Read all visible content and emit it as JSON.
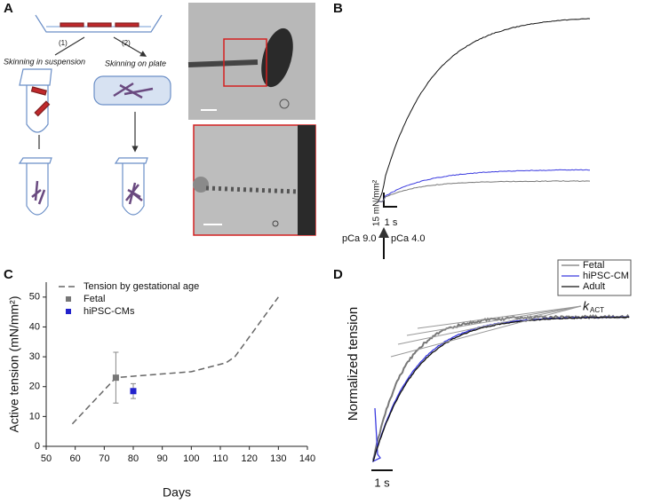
{
  "panels": {
    "A": {
      "label": "A",
      "step1": "(1)",
      "step2": "(2)",
      "left_caption": "Skinning in suspension",
      "right_caption": "Skinning on plate"
    },
    "B": {
      "label": "B",
      "scale_y": "15 mN/mm²",
      "scale_x": "1 s",
      "left_pca": "pCa 9.0",
      "right_pca": "pCa 4.0"
    },
    "C": {
      "label": "C"
    },
    "D": {
      "label": "D",
      "ylabel": "Normalized tension",
      "rate_symbol": "k",
      "rate_subscript": "ACT",
      "scale_x": "1 s",
      "legend": [
        {
          "name": "Fetal",
          "color": "#777777"
        },
        {
          "name": "hiPSC-CM",
          "color": "#3a3adf"
        },
        {
          "name": "Adult",
          "color": "#111111"
        }
      ]
    }
  },
  "chart_data": {
    "type": "line",
    "xlabel": "Days",
    "ylabel": "Active tension (mN/mm²)",
    "xlim": [
      50,
      140
    ],
    "xticks": [
      50,
      60,
      70,
      80,
      90,
      100,
      110,
      120,
      130,
      140
    ],
    "ylim": [
      0,
      55
    ],
    "yticks": [
      0,
      10,
      20,
      30,
      40,
      50
    ],
    "series": [
      {
        "name": "Tension by gestational age",
        "color": "#666666",
        "dashed": true,
        "x": [
          59,
          74,
          80,
          100,
          112,
          115,
          130
        ],
        "values": [
          7.5,
          23,
          23.5,
          25,
          28,
          30,
          50
        ]
      },
      {
        "name": "Fetal",
        "color": "#777777",
        "marker": "square",
        "x": [
          74
        ],
        "values": [
          23
        ],
        "errors": [
          8.5
        ]
      },
      {
        "name": "hiPSC-CMs",
        "color": "#2222cc",
        "marker": "square",
        "x": [
          80
        ],
        "values": [
          18.5
        ],
        "errors": [
          2.5
        ]
      }
    ]
  }
}
